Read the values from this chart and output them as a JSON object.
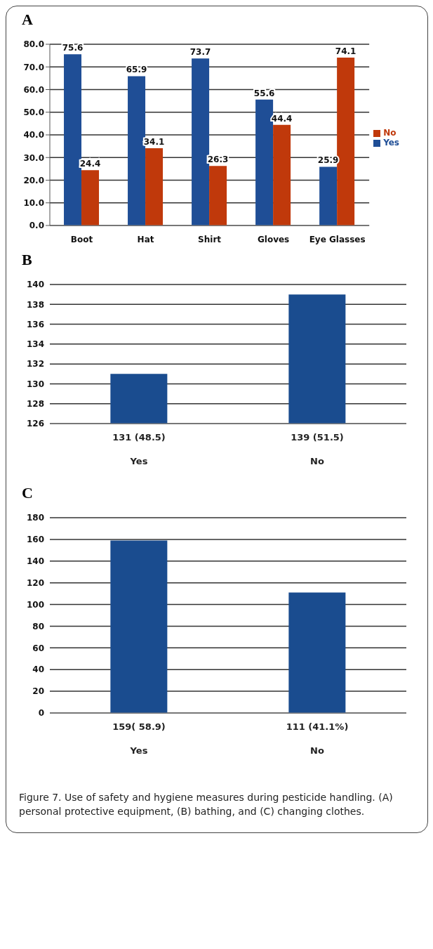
{
  "chart_data": [
    {
      "type": "bar",
      "title": "A",
      "categories": [
        "Boot",
        "Hat",
        "Shirt",
        "Gloves",
        "Eye Glasses"
      ],
      "series": [
        {
          "name": "Yes",
          "color": "#1f4e96",
          "values": [
            75.6,
            65.9,
            73.7,
            55.6,
            25.9
          ]
        },
        {
          "name": "No",
          "color": "#c0390b",
          "values": [
            24.4,
            34.1,
            26.3,
            44.4,
            74.1
          ]
        }
      ],
      "ylim": [
        0,
        80
      ],
      "yticks": [
        {
          "value": 0,
          "label": "0.0"
        },
        {
          "value": 10,
          "label": "10.0"
        },
        {
          "value": 20,
          "label": "20.0"
        },
        {
          "value": 30,
          "label": "30.0"
        },
        {
          "value": 40,
          "label": "40.0"
        },
        {
          "value": 50,
          "label": "50.0"
        },
        {
          "value": 60,
          "label": "60.0"
        },
        {
          "value": 70,
          "label": "70.0"
        },
        {
          "value": 80,
          "label": "80.0"
        }
      ],
      "grid": "y",
      "legend": "right",
      "data_labels": true
    },
    {
      "type": "bar",
      "title": "B",
      "categories": [
        "Yes",
        "No"
      ],
      "values": [
        131,
        139
      ],
      "color": "#1a4c8f",
      "value_labels": [
        "131 (48.5)",
        "139 (51.5)"
      ],
      "ylim": [
        126,
        140
      ],
      "yticks": [
        126,
        128,
        130,
        132,
        134,
        136,
        138,
        140
      ],
      "grid": "y"
    },
    {
      "type": "bar",
      "title": "C",
      "categories": [
        "Yes",
        "No"
      ],
      "values": [
        159,
        111
      ],
      "color": "#1a4c8f",
      "value_labels": [
        "159( 58.9)",
        "111 (41.1%)"
      ],
      "ylim": [
        0,
        180
      ],
      "yticks": [
        0,
        20,
        40,
        60,
        80,
        100,
        120,
        140,
        160,
        180
      ],
      "grid": "y",
      "annotations": [
        "Figure 7. Use of safety and hygiene measures during pesticide handling. (A) personal protective equipment, (B) bathing, and (C) changing clothes."
      ]
    }
  ]
}
